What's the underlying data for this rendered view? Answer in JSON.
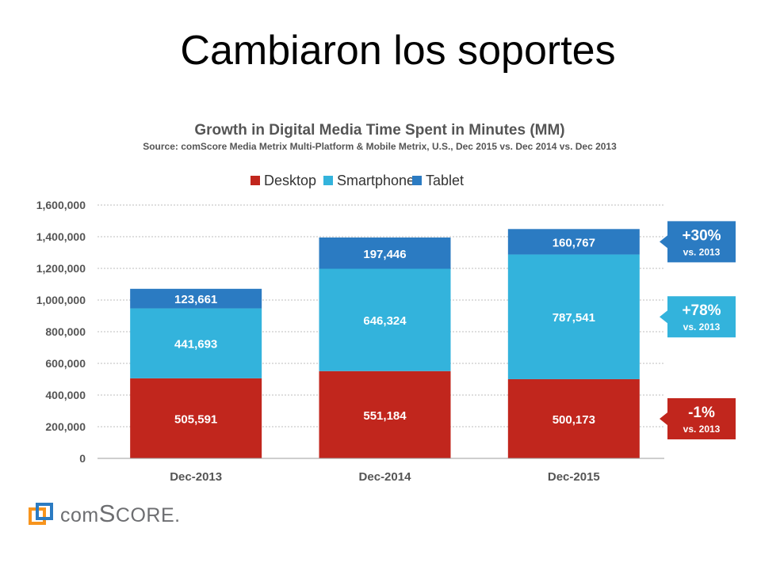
{
  "slide_title": "Cambiaron los soportes",
  "logo": {
    "prefix": "com",
    "big": "S",
    "rest": "CORE",
    "suffix": "."
  },
  "colors": {
    "desktop": "#c1261d",
    "smartphone": "#33b3dc",
    "tablet": "#2b7bc2",
    "axis_text": "#555555"
  },
  "chart_data": {
    "type": "bar",
    "stacked": true,
    "title": "Growth in Digital Media Time Spent in Minutes (MM)",
    "subtitle": "Source: comScore Media Metrix Multi-Platform & Mobile Metrix, U.S., Dec 2015 vs. Dec 2014 vs. Dec 2013",
    "categories": [
      "Dec-2013",
      "Dec-2014",
      "Dec-2015"
    ],
    "series": [
      {
        "name": "Desktop",
        "values": [
          505591,
          551184,
          500173
        ],
        "labels": [
          "505,591",
          "551,184",
          "500,173"
        ]
      },
      {
        "name": "Smartphone",
        "values": [
          441693,
          646324,
          787541
        ],
        "labels": [
          "441,693",
          "646,324",
          "787,541"
        ]
      },
      {
        "name": "Tablet",
        "values": [
          123661,
          197446,
          160767
        ],
        "labels": [
          "123,661",
          "197,446",
          "160,767"
        ]
      }
    ],
    "ylim": [
      0,
      1600000
    ],
    "yticks": [
      "0",
      "200,000",
      "400,000",
      "600,000",
      "800,000",
      "1,000,000",
      "1,200,000",
      "1,400,000",
      "1,600,000"
    ],
    "grid": true,
    "legend_position": "top-center",
    "annotations": [
      {
        "series": "Tablet",
        "main": "+30%",
        "sub": "vs. 2013"
      },
      {
        "series": "Smartphone",
        "main": "+78%",
        "sub": "vs. 2013"
      },
      {
        "series": "Desktop",
        "main": "-1%",
        "sub": "vs. 2013"
      }
    ]
  }
}
